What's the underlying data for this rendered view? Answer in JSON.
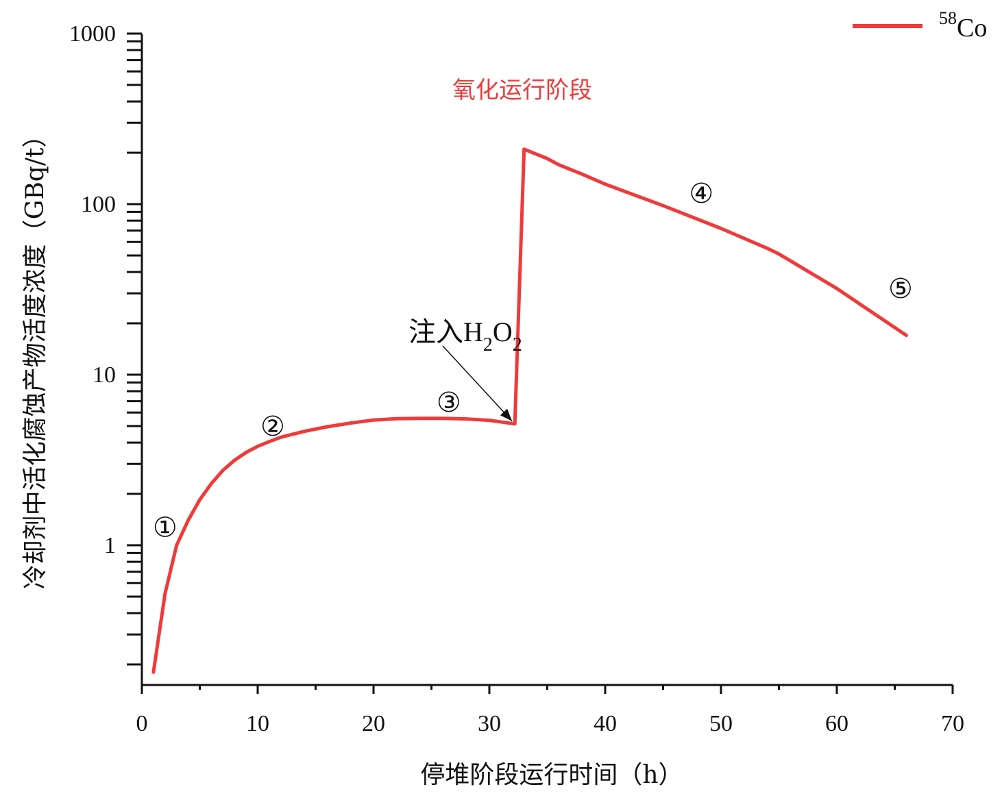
{
  "chart_data": {
    "type": "line",
    "xlabel": "停堆阶段运行时间（h）",
    "ylabel": "冷却剂中活化腐蚀产物活度浓度（GBq/t）",
    "xlim": [
      0,
      70
    ],
    "ylim": [
      0.2,
      1000
    ],
    "yscale": "log",
    "x_ticks": [
      0,
      10,
      20,
      30,
      40,
      50,
      60,
      70
    ],
    "x_tick_labels": [
      "0",
      "10",
      "20",
      "30",
      "40",
      "50",
      "60",
      "70"
    ],
    "y_ticks": [
      1,
      10,
      100,
      1000
    ],
    "y_tick_labels": [
      "1",
      "10",
      "100",
      "1000"
    ],
    "legend_position": "top-right",
    "series": [
      {
        "name": "58Co",
        "name_main": "Co",
        "name_sup": "58",
        "color": "#f03a3a",
        "x": [
          1.0,
          2.0,
          3.0,
          4.0,
          5.0,
          6.0,
          7.0,
          8.0,
          9.0,
          10.0,
          11.0,
          12.0,
          14.0,
          16.0,
          18.0,
          20.0,
          22.0,
          24.0,
          26.0,
          28.0,
          30.0,
          32.2,
          33.0,
          35.0,
          36.0,
          38.0,
          40.0,
          45.0,
          50.0,
          54.0,
          55.0,
          60.0,
          66.0
        ],
        "y": [
          0.18,
          0.52,
          1.0,
          1.4,
          1.85,
          2.3,
          2.75,
          3.15,
          3.5,
          3.8,
          4.05,
          4.3,
          4.65,
          4.95,
          5.2,
          5.42,
          5.52,
          5.55,
          5.55,
          5.5,
          5.4,
          5.15,
          210,
          185,
          170,
          150,
          131,
          98,
          72,
          55,
          51,
          32,
          17
        ]
      }
    ],
    "annotations": {
      "phase_label": "氧化运行阶段",
      "phase_color": "#f03a3a",
      "injection_label_main": "注入H",
      "injection_label_sub1": "2",
      "injection_label_mid": "O",
      "injection_label_sub2": "2",
      "arrow_target": {
        "x": 32.2,
        "y": 5.15
      },
      "markers": [
        {
          "label": "①",
          "x": 2.0,
          "y": 1.28
        },
        {
          "label": "②",
          "x": 11.3,
          "y": 5.0
        },
        {
          "label": "③",
          "x": 26.5,
          "y": 6.9
        },
        {
          "label": "④",
          "x": 48.3,
          "y": 116
        },
        {
          "label": "⑤",
          "x": 65.5,
          "y": 32
        }
      ]
    }
  }
}
